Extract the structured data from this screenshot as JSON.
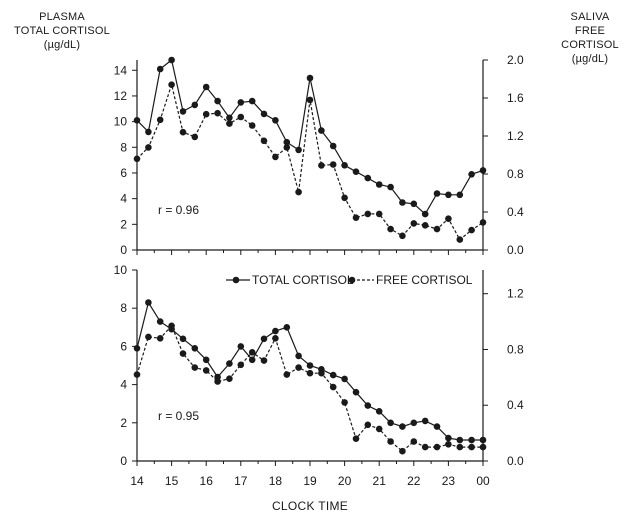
{
  "left_axis_header": [
    "PLASMA",
    "TOTAL CORTISOL",
    "(µg/dL)"
  ],
  "right_axis_header": [
    "SALIVA",
    "FREE CORTISOL",
    "(µg/dL)"
  ],
  "chart_data": [
    {
      "type": "line",
      "xlabel": "CLOCK TIME",
      "x_ticks": [
        "14",
        "15",
        "16",
        "17",
        "18",
        "19",
        "20",
        "21",
        "22",
        "23",
        "00"
      ],
      "x_range": [
        14,
        24.0
      ],
      "annotation": "r = 0.96",
      "y_left": {
        "ticks": [
          "0",
          "2",
          "4",
          "6",
          "8",
          "10",
          "12",
          "14"
        ],
        "range": [
          0,
          14.8
        ]
      },
      "y_right": {
        "ticks": [
          "0.0",
          "0.4",
          "0.8",
          "1.2",
          "1.6",
          "2.0"
        ],
        "range": [
          0,
          2.0
        ]
      },
      "x": [
        14.0,
        14.33,
        14.67,
        15.0,
        15.33,
        15.67,
        16.0,
        16.33,
        16.67,
        17.0,
        17.33,
        17.67,
        18.0,
        18.33,
        18.67,
        19.0,
        19.33,
        19.67,
        20.0,
        20.33,
        20.67,
        21.0,
        21.33,
        21.67,
        22.0,
        22.33,
        22.67,
        23.0,
        23.33,
        23.67,
        24.0
      ],
      "series": [
        {
          "name": "TOTAL CORTISOL",
          "axis": "left",
          "style": "solid",
          "values": [
            10.1,
            9.2,
            14.1,
            14.8,
            10.8,
            11.3,
            12.7,
            11.6,
            10.3,
            11.5,
            11.6,
            10.6,
            10.1,
            8.4,
            7.8,
            13.4,
            9.3,
            8.1,
            6.6,
            6.1,
            5.6,
            5.1,
            4.9,
            3.7,
            3.6,
            2.8,
            4.4,
            4.3,
            4.3,
            5.9,
            6.2
          ]
        },
        {
          "name": "FREE CORTISOL",
          "axis": "right",
          "style": "dashed",
          "values": [
            0.96,
            1.08,
            1.37,
            1.74,
            1.24,
            1.19,
            1.43,
            1.44,
            1.33,
            1.4,
            1.31,
            1.15,
            0.98,
            1.08,
            0.61,
            1.58,
            0.89,
            0.9,
            0.55,
            0.34,
            0.38,
            0.38,
            0.22,
            0.15,
            0.28,
            0.26,
            0.22,
            0.33,
            0.11,
            0.21,
            0.29
          ]
        }
      ]
    },
    {
      "type": "line",
      "xlabel": "CLOCK TIME",
      "x_ticks": [
        "14",
        "15",
        "16",
        "17",
        "18",
        "19",
        "20",
        "21",
        "22",
        "23",
        "00"
      ],
      "x_range": [
        14,
        24.0
      ],
      "annotation": "r = 0.95",
      "legend": [
        "TOTAL CORTISOL",
        "FREE CORTISOL"
      ],
      "y_left": {
        "ticks": [
          "0",
          "2",
          "4",
          "6",
          "8",
          "10"
        ],
        "range": [
          0,
          10
        ]
      },
      "y_right": {
        "ticks": [
          "0.0",
          "0.4",
          "0.8",
          "1.2"
        ],
        "range": [
          0,
          1.37
        ]
      },
      "x": [
        14.0,
        14.33,
        14.67,
        15.0,
        15.33,
        15.67,
        16.0,
        16.33,
        16.67,
        17.0,
        17.33,
        17.67,
        18.0,
        18.33,
        18.67,
        19.0,
        19.33,
        19.67,
        20.0,
        20.33,
        20.67,
        21.0,
        21.33,
        21.67,
        22.0,
        22.33,
        22.67,
        23.0,
        23.33,
        23.67,
        24.0
      ],
      "series": [
        {
          "name": "TOTAL CORTISOL",
          "axis": "left",
          "style": "solid",
          "values": [
            5.9,
            8.3,
            7.3,
            6.9,
            6.4,
            5.9,
            5.3,
            4.4,
            5.1,
            6.0,
            5.3,
            6.4,
            6.8,
            7.0,
            5.5,
            5.0,
            4.8,
            4.5,
            4.3,
            3.6,
            2.9,
            2.6,
            2.0,
            1.8,
            2.0,
            2.1,
            1.8,
            1.2,
            1.1,
            1.1,
            1.1
          ]
        },
        {
          "name": "FREE CORTISOL",
          "axis": "right",
          "style": "dashed",
          "values": [
            0.62,
            0.89,
            0.88,
            0.97,
            0.77,
            0.67,
            0.65,
            0.57,
            0.59,
            0.69,
            0.78,
            0.72,
            0.88,
            0.62,
            0.67,
            0.63,
            0.63,
            0.53,
            0.42,
            0.16,
            0.26,
            0.23,
            0.14,
            0.07,
            0.14,
            0.1,
            0.1,
            0.12,
            0.1,
            0.1,
            0.1
          ]
        }
      ]
    }
  ]
}
